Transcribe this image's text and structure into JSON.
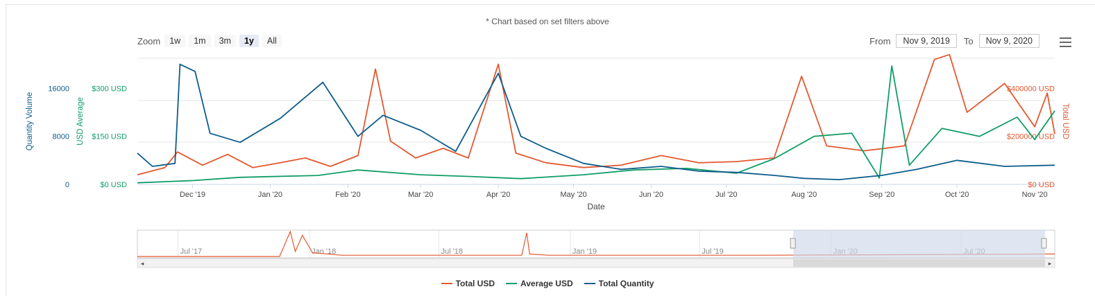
{
  "note": "* Chart based on set filters above",
  "zoom": {
    "label": "Zoom",
    "buttons": [
      "1w",
      "1m",
      "3m",
      "1y",
      "All"
    ],
    "active": "1y"
  },
  "range": {
    "from_label": "From",
    "from": "Nov 9, 2019",
    "to_label": "To",
    "to": "Nov 9, 2020"
  },
  "colors": {
    "total_usd": "#e2582f",
    "average_usd": "#0f9d66",
    "total_quantity": "#0c5c8c",
    "navigator_mask": "#cfd9ea"
  },
  "chart_data": {
    "type": "line",
    "xlabel": "Date",
    "x_ticks": [
      "Dec '19",
      "Jan '20",
      "Feb '20",
      "Mar '20",
      "Apr '20",
      "May '20",
      "Jun '20",
      "Jul '20",
      "Aug '20",
      "Sep '20",
      "Oct '20",
      "Nov '20"
    ],
    "xlim": [
      "Nov 9, 2019",
      "Nov 9, 2020"
    ],
    "axes": [
      {
        "title": "Quantity Volume",
        "position": "left",
        "ticks": [
          "0",
          "8000",
          "16000"
        ],
        "ylim": [
          0,
          21000
        ]
      },
      {
        "title": "USD Average",
        "position": "left",
        "ticks": [
          "$0 USD",
          "$150 USD",
          "$300 USD"
        ],
        "ylim": [
          0,
          394
        ]
      },
      {
        "title": "Total USD",
        "position": "right",
        "ticks": [
          "$0 USD",
          "$200000 USD",
          "$400000 USD"
        ],
        "ylim": [
          0,
          525000
        ]
      }
    ],
    "series": [
      {
        "name": "Total USD",
        "axis": "Total USD",
        "points": [
          [
            "2019-11-09",
            40000
          ],
          [
            "2019-11-20",
            70000
          ],
          [
            "2019-11-25",
            135000
          ],
          [
            "2019-12-05",
            80000
          ],
          [
            "2019-12-15",
            125000
          ],
          [
            "2019-12-25",
            70000
          ],
          [
            "2020-01-05",
            90000
          ],
          [
            "2020-01-15",
            110000
          ],
          [
            "2020-01-25",
            75000
          ],
          [
            "2020-02-05",
            120000
          ],
          [
            "2020-02-12",
            480000
          ],
          [
            "2020-02-18",
            180000
          ],
          [
            "2020-02-28",
            110000
          ],
          [
            "2020-03-10",
            150000
          ],
          [
            "2020-03-20",
            110000
          ],
          [
            "2020-04-01",
            500000
          ],
          [
            "2020-04-08",
            130000
          ],
          [
            "2020-04-20",
            90000
          ],
          [
            "2020-05-05",
            70000
          ],
          [
            "2020-05-20",
            80000
          ],
          [
            "2020-06-05",
            120000
          ],
          [
            "2020-06-20",
            90000
          ],
          [
            "2020-07-05",
            95000
          ],
          [
            "2020-07-20",
            110000
          ],
          [
            "2020-07-31",
            450000
          ],
          [
            "2020-08-10",
            160000
          ],
          [
            "2020-08-25",
            140000
          ],
          [
            "2020-09-10",
            160000
          ],
          [
            "2020-09-22",
            520000
          ],
          [
            "2020-09-28",
            540000
          ],
          [
            "2020-10-05",
            300000
          ],
          [
            "2020-10-20",
            420000
          ],
          [
            "2020-11-01",
            240000
          ],
          [
            "2020-11-06",
            380000
          ],
          [
            "2020-11-09",
            210000
          ]
        ]
      },
      {
        "name": "Average USD",
        "axis": "USD Average",
        "points": [
          [
            "2019-11-09",
            5
          ],
          [
            "2019-12-01",
            12
          ],
          [
            "2019-12-20",
            22
          ],
          [
            "2020-01-20",
            28
          ],
          [
            "2020-02-05",
            45
          ],
          [
            "2020-03-01",
            30
          ],
          [
            "2020-03-20",
            25
          ],
          [
            "2020-04-10",
            18
          ],
          [
            "2020-05-05",
            30
          ],
          [
            "2020-05-25",
            45
          ],
          [
            "2020-06-15",
            50
          ],
          [
            "2020-07-05",
            35
          ],
          [
            "2020-07-20",
            80
          ],
          [
            "2020-08-05",
            150
          ],
          [
            "2020-08-20",
            160
          ],
          [
            "2020-08-31",
            20
          ],
          [
            "2020-09-05",
            370
          ],
          [
            "2020-09-12",
            60
          ],
          [
            "2020-09-25",
            175
          ],
          [
            "2020-10-10",
            150
          ],
          [
            "2020-10-25",
            210
          ],
          [
            "2020-11-01",
            140
          ],
          [
            "2020-11-09",
            230
          ]
        ]
      },
      {
        "name": "Total Quantity",
        "axis": "Quantity Volume",
        "points": [
          [
            "2019-11-09",
            5200
          ],
          [
            "2019-11-15",
            3000
          ],
          [
            "2019-11-24",
            3500
          ],
          [
            "2019-11-26",
            20000
          ],
          [
            "2019-12-02",
            18800
          ],
          [
            "2019-12-08",
            8500
          ],
          [
            "2019-12-20",
            7000
          ],
          [
            "2020-01-05",
            11000
          ],
          [
            "2020-01-22",
            17000
          ],
          [
            "2020-02-05",
            8000
          ],
          [
            "2020-02-15",
            11500
          ],
          [
            "2020-03-01",
            9000
          ],
          [
            "2020-03-15",
            5500
          ],
          [
            "2020-04-01",
            18500
          ],
          [
            "2020-04-10",
            8000
          ],
          [
            "2020-04-20",
            6000
          ],
          [
            "2020-05-05",
            3500
          ],
          [
            "2020-05-20",
            2500
          ],
          [
            "2020-06-05",
            3000
          ],
          [
            "2020-06-20",
            2200
          ],
          [
            "2020-07-05",
            2000
          ],
          [
            "2020-07-20",
            1500
          ],
          [
            "2020-08-01",
            1000
          ],
          [
            "2020-08-15",
            800
          ],
          [
            "2020-09-01",
            1500
          ],
          [
            "2020-09-15",
            2500
          ],
          [
            "2020-10-01",
            4000
          ],
          [
            "2020-10-20",
            3000
          ],
          [
            "2020-11-09",
            3200
          ]
        ]
      }
    ],
    "navigator": {
      "x_ticks": [
        "Jul '17",
        "Jan '18",
        "Jul '18",
        "Jan '19",
        "Jul '19",
        "Jan '20",
        "Jul '20"
      ],
      "selected_range": [
        "Nov 9, 2019",
        "Nov 9, 2020"
      ]
    },
    "legend": {
      "placement": "bottom",
      "items": [
        "Total USD",
        "Average USD",
        "Total Quantity"
      ]
    },
    "grid": true
  }
}
